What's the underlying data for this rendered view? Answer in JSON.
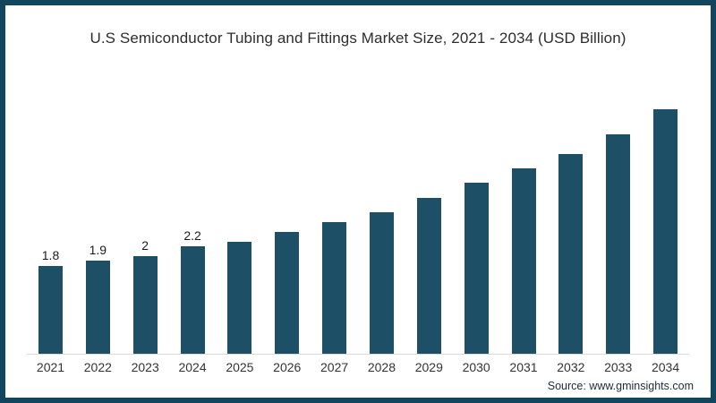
{
  "chart_data": {
    "type": "bar",
    "title": "U.S Semiconductor Tubing and Fittings Market Size, 2021 - 2034 (USD Billion)",
    "categories": [
      "2021",
      "2022",
      "2023",
      "2024",
      "2025",
      "2026",
      "2027",
      "2028",
      "2029",
      "2030",
      "2031",
      "2032",
      "2033",
      "2034"
    ],
    "values": [
      1.8,
      1.9,
      2,
      2.2,
      2.3,
      2.5,
      2.7,
      2.9,
      3.2,
      3.5,
      3.8,
      4.1,
      4.5,
      5
    ],
    "value_labels": [
      "1.8",
      "1.9",
      "2",
      "2.2",
      "",
      "",
      "",
      "",
      "",
      "",
      "",
      "",
      "",
      ""
    ],
    "xlabel": "",
    "ylabel": "",
    "ylim": [
      0,
      5.5
    ],
    "grid": "off",
    "legend": "none",
    "bar_color": "#1d4f66"
  },
  "source": {
    "text": "Source: www.gminsights.com"
  },
  "colors": {
    "frame_border": "#12465e",
    "bar": "#1d4f66",
    "axis_line": "#d9d9d9",
    "title_text": "#2d2d2d",
    "tick_text": "#333333",
    "source_text": "#1c2b3a"
  }
}
